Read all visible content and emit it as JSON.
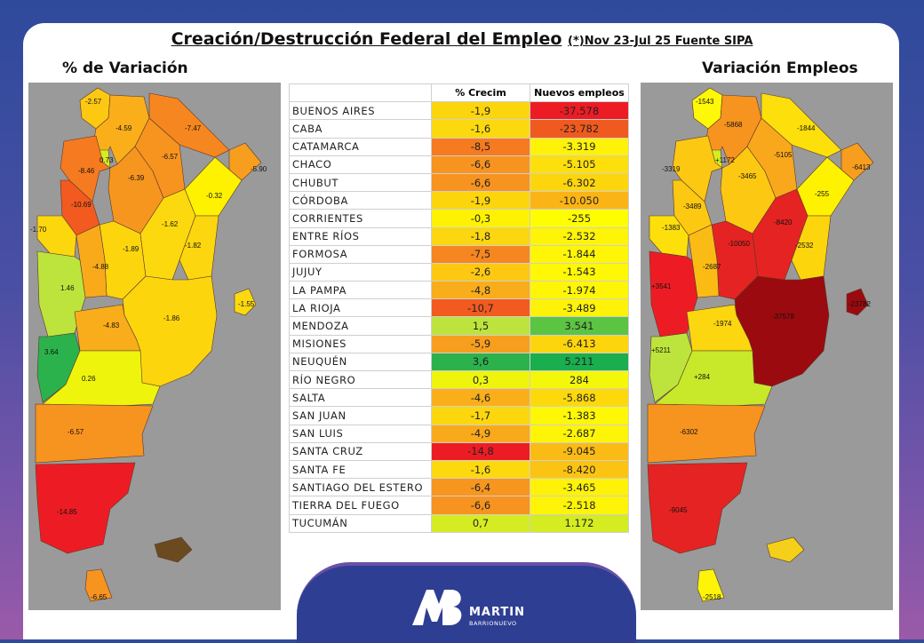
{
  "title": "Creación/Destrucción Federal del Empleo",
  "subtitle": "(*)Nov 23-Jul 25 Fuente SIPA",
  "left_header": "% de Variación",
  "right_header": "Variación  Empleos",
  "table": {
    "col_pct": "% Crecim",
    "col_emp": "Nuevos empleos",
    "rows": [
      {
        "name": "BUENOS AIRES",
        "pct": "-1,9",
        "emp": "-37.578",
        "pct_color": "#fcd50d",
        "emp_color": "#ed1c24",
        "emp_text": "#222"
      },
      {
        "name": "CABA",
        "pct": "-1,6",
        "emp": "-23.782",
        "pct_color": "#fcd90f",
        "emp_color": "#f05a1e",
        "emp_text": "#222"
      },
      {
        "name": "CATAMARCA",
        "pct": "-8,5",
        "emp": "-3.319",
        "pct_color": "#f57a20",
        "emp_color": "#fdf208",
        "emp_text": "#222"
      },
      {
        "name": "CHACO",
        "pct": "-6,6",
        "emp": "-5.105",
        "pct_color": "#f7931f",
        "emp_color": "#fddf0b",
        "emp_text": "#222"
      },
      {
        "name": "CHUBUT",
        "pct": "-6,6",
        "emp": "-6.302",
        "pct_color": "#f7931f",
        "emp_color": "#fdd50d",
        "emp_text": "#222"
      },
      {
        "name": "CÓRDOBA",
        "pct": "-1,9",
        "emp": "-10.050",
        "pct_color": "#fcd50d",
        "emp_color": "#fbb416",
        "emp_text": "#222"
      },
      {
        "name": "CORRIENTES",
        "pct": "-0,3",
        "emp": "-255",
        "pct_color": "#fef200",
        "emp_color": "#fefe00",
        "emp_text": "#222"
      },
      {
        "name": "ENTRE RÍOS",
        "pct": "-1,8",
        "emp": "-2.532",
        "pct_color": "#fcd60e",
        "emp_color": "#fdf408",
        "emp_text": "#222"
      },
      {
        "name": "FORMOSA",
        "pct": "-7,5",
        "emp": "-1.844",
        "pct_color": "#f6861f",
        "emp_color": "#fef606",
        "emp_text": "#222"
      },
      {
        "name": "JUJUY",
        "pct": "-2,6",
        "emp": "-1.543",
        "pct_color": "#fcc812",
        "emp_color": "#fef706",
        "emp_text": "#222"
      },
      {
        "name": "LA PAMPA",
        "pct": "-4,8",
        "emp": "-1.974",
        "pct_color": "#f9ad1b",
        "emp_color": "#fef606",
        "emp_text": "#222"
      },
      {
        "name": "LA RIOJA",
        "pct": "-10,7",
        "emp": "-3.489",
        "pct_color": "#f25a20",
        "emp_color": "#fdf208",
        "emp_text": "#222"
      },
      {
        "name": "MENDOZA",
        "pct": "1,5",
        "emp": "3.541",
        "pct_color": "#bde43c",
        "emp_color": "#5cc443",
        "emp_text": "#222"
      },
      {
        "name": "MISIONES",
        "pct": "-5,9",
        "emp": "-6.413",
        "pct_color": "#f89e1e",
        "emp_color": "#fdd50d",
        "emp_text": "#222"
      },
      {
        "name": "NEUQUÉN",
        "pct": "3,6",
        "emp": "5.211",
        "pct_color": "#2bb24c",
        "emp_color": "#1aae4e",
        "emp_text": "#222"
      },
      {
        "name": "RÍO NEGRO",
        "pct": "0,3",
        "emp": "284",
        "pct_color": "#eef40c",
        "emp_color": "#f4f709",
        "emp_text": "#222"
      },
      {
        "name": "SALTA",
        "pct": "-4,6",
        "emp": "-5.868",
        "pct_color": "#faaf1a",
        "emp_color": "#fdd90c",
        "emp_text": "#222"
      },
      {
        "name": "SAN JUAN",
        "pct": "-1,7",
        "emp": "-1.383",
        "pct_color": "#fcd70e",
        "emp_color": "#fef706",
        "emp_text": "#222"
      },
      {
        "name": "SAN LUIS",
        "pct": "-4,9",
        "emp": "-2.687",
        "pct_color": "#f9aa1b",
        "emp_color": "#fdf407",
        "emp_text": "#222"
      },
      {
        "name": "SANTA CRUZ",
        "pct": "-14,8",
        "emp": "-9.045",
        "pct_color": "#ed1c24",
        "emp_color": "#fbbb15",
        "emp_text": "#222"
      },
      {
        "name": "SANTA FE",
        "pct": "-1,6",
        "emp": "-8.420",
        "pct_color": "#fcd90f",
        "emp_color": "#fcc412",
        "emp_text": "#222"
      },
      {
        "name": "SANTIAGO DEL ESTERO",
        "pct": "-6,4",
        "emp": "-3.465",
        "pct_color": "#f7961f",
        "emp_color": "#fdf208",
        "emp_text": "#222"
      },
      {
        "name": "TIERRA DEL FUEGO",
        "pct": "-6,6",
        "emp": "-2.518",
        "pct_color": "#f7931f",
        "emp_color": "#fdf407",
        "emp_text": "#222"
      },
      {
        "name": "TUCUMÁN",
        "pct": "0,7",
        "emp": "1.172",
        "pct_color": "#d6ec22",
        "emp_color": "#d4ec20",
        "emp_text": "#222"
      }
    ]
  },
  "left_map_labels": [
    "-2.57",
    "-4.59",
    "-7.47",
    "-6.57",
    "-5.90",
    "0.73",
    "-8.46",
    "-6.39",
    "-0.32",
    "-10.69",
    "-1.62",
    "-1.70",
    "-1.89",
    "-1.82",
    "-4.88",
    "1.46",
    "-1.55",
    "-4.83",
    "-1.86",
    "3.64",
    "0.26",
    "-6.57",
    "-14.85",
    "-6.65"
  ],
  "right_map_labels": [
    "-1543",
    "-5868",
    "-1844",
    "+1172",
    "-5105",
    "-6413",
    "-3319",
    "-3465",
    "-255",
    "-3489",
    "-8420",
    "-1383",
    "-10050",
    "-2532",
    "-2687",
    "+3541",
    "-23782",
    "-37578",
    "-1974",
    "+5211",
    "+284",
    "-6302",
    "-9045",
    "-2518"
  ],
  "logo": {
    "line1": "MARTIN",
    "line2": "BARRIONUEVO"
  }
}
